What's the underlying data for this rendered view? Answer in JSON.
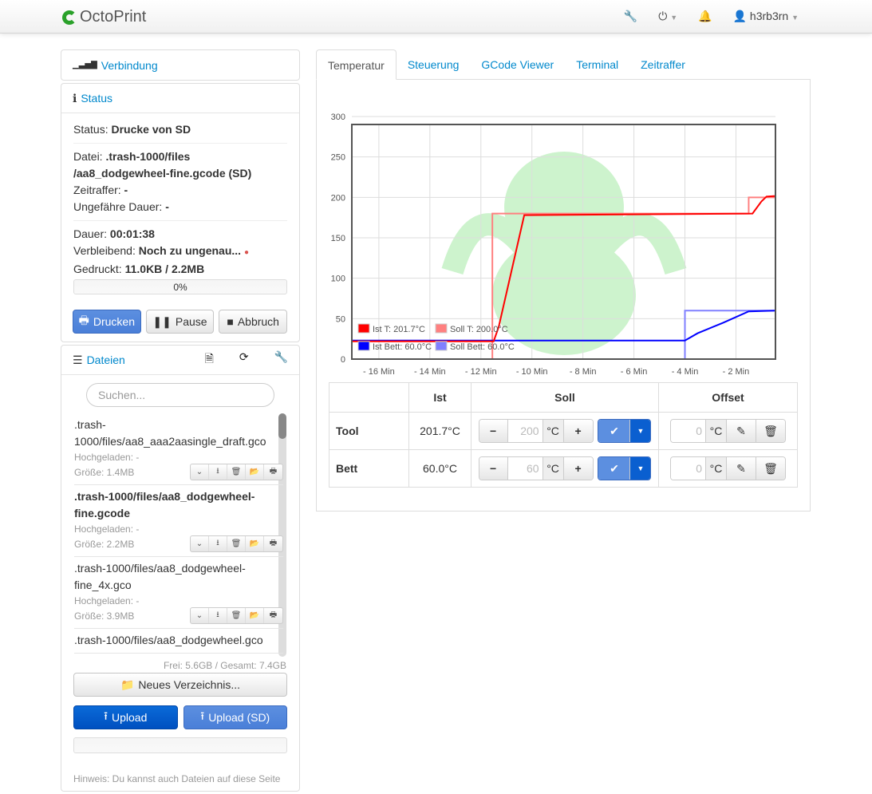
{
  "navbar": {
    "brand": "OctoPrint",
    "user": "h3rb3rn"
  },
  "connection": {
    "title": "Verbindung"
  },
  "status": {
    "title": "Status",
    "state_label": "Status:",
    "state": "Drucke von SD",
    "file_label": "Datei:",
    "file": ".trash-1000/files /aa8_dodgewheel-fine.gcode (SD)",
    "timelapse_label": "Zeitraffer:",
    "timelapse": "-",
    "est_label": "Ungefähre Dauer:",
    "est": "-",
    "time_label": "Dauer:",
    "time": "00:01:38",
    "left_label": "Verbleibend:",
    "left": "Noch zu ungenau...",
    "printed_label": "Gedruckt:",
    "printed": "11.0KB / 2.2MB",
    "progress_text": "0%",
    "progress": 0,
    "print_btn": "Drucken",
    "pause_btn": "Pause",
    "cancel_btn": "Abbruch"
  },
  "files": {
    "title": "Dateien",
    "search_placeholder": "Suchen...",
    "items": [
      {
        "name": ".trash-1000/files/aa8_aaa2aasingle_draft.gco",
        "uploaded": "Hochgeladen: -",
        "size": "Größe: 1.4MB",
        "bold": false
      },
      {
        "name": ".trash-1000/files/aa8_dodgewheel-fine.gcode",
        "uploaded": "Hochgeladen: -",
        "size": "Größe: 2.2MB",
        "bold": true
      },
      {
        "name": ".trash-1000/files/aa8_dodgewheel-fine_4x.gco",
        "uploaded": "Hochgeladen: -",
        "size": "Größe: 3.9MB",
        "bold": false
      },
      {
        "name": ".trash-1000/files/aa8_dodgewheel.gco",
        "uploaded": "",
        "size": "",
        "bold": false
      }
    ],
    "storage": "Frei: 5.6GB / Gesamt: 7.4GB",
    "new_folder": "Neues Verzeichnis...",
    "upload": "Upload",
    "upload_sd": "Upload (SD)",
    "hint": "Hinweis: Du kannst auch Dateien auf diese Seite"
  },
  "tabs": [
    "Temperatur",
    "Steuerung",
    "GCode Viewer",
    "Terminal",
    "Zeitraffer"
  ],
  "chart_data": {
    "type": "line",
    "ylim": [
      0,
      300
    ],
    "xlim": [
      -17.06,
      -0.45
    ],
    "yticks": [
      0,
      50,
      100,
      150,
      200,
      250,
      300
    ],
    "xticks": [
      -16,
      -14,
      -12,
      -10,
      -8,
      -6,
      -4,
      -2
    ],
    "xtick_labels": [
      "- 16 Min",
      "- 14 Min",
      "- 12 Min",
      "- 10 Min",
      "- 8 Min",
      "- 6 Min",
      "- 4 Min",
      "- 2 Min"
    ],
    "legend_position": "bottom-left",
    "grid": true,
    "series": [
      {
        "name": "Ist T: 201.7°C",
        "color": "#ff0000",
        "x": [
          -17.06,
          -11.5,
          -11.3,
          -10.3,
          -1.35,
          -1.0,
          -0.8,
          -0.45
        ],
        "y": [
          22,
          22,
          40,
          178,
          180,
          195,
          201,
          201.7
        ]
      },
      {
        "name": "Soll T: 200.0°C",
        "color": "#ff8080",
        "step": true,
        "x": [
          -17.06,
          -11.55,
          -1.5,
          -0.45
        ],
        "y": [
          0,
          180,
          200,
          200
        ]
      },
      {
        "name": "Ist Bett: 60.0°C",
        "color": "#0000ff",
        "x": [
          -17.06,
          -4.0,
          -3.5,
          -2.5,
          -1.5,
          -0.45
        ],
        "y": [
          23,
          23,
          32,
          45,
          59,
          60
        ]
      },
      {
        "name": "Soll Bett: 60.0°C",
        "color": "#8080ff",
        "step": true,
        "x": [
          -17.06,
          -4.0,
          -0.45
        ],
        "y": [
          0,
          60,
          60
        ]
      }
    ]
  },
  "temps": {
    "headers": [
      "",
      "Ist",
      "Soll",
      "Offset"
    ],
    "rows": [
      {
        "name": "Tool",
        "actual": "201.7°C",
        "target": "200",
        "offset": "0"
      },
      {
        "name": "Bett",
        "actual": "60.0°C",
        "target": "60",
        "offset": "0"
      }
    ],
    "unit": "°C"
  }
}
